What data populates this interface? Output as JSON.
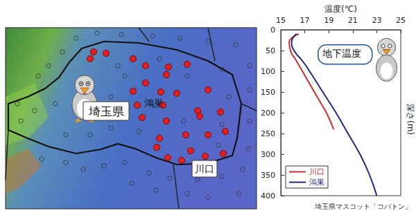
{
  "chart_data": {
    "type": "line",
    "xlabel": "温度(℃)",
    "ylabel": "深さ(m)",
    "xlim": [
      15,
      25
    ],
    "xticks": [
      15,
      17,
      19,
      21,
      23,
      25
    ],
    "ylim": [
      0,
      400
    ],
    "yticks": [
      0,
      50,
      100,
      150,
      200,
      250,
      300,
      350,
      400
    ],
    "grid": false,
    "legend": "lower left",
    "annotation": "地下温度",
    "series": [
      {
        "name": "川口",
        "color": "#d42a2a",
        "x": [
          16.5,
          15.9,
          15.7,
          15.8,
          16.3,
          16.8,
          17.3,
          17.8,
          18.3,
          18.8,
          19.2,
          19.4
        ],
        "y": [
          10,
          20,
          30,
          50,
          75,
          100,
          125,
          150,
          175,
          200,
          225,
          240
        ]
      },
      {
        "name": "鴻巣",
        "color": "#1f2a80",
        "x": [
          16.3,
          16.0,
          15.9,
          16.1,
          16.8,
          17.4,
          18.5,
          19.6,
          20.6,
          21.6,
          22.4,
          23.0
        ],
        "y": [
          10,
          20,
          30,
          50,
          75,
          100,
          150,
          200,
          250,
          300,
          350,
          400
        ]
      }
    ]
  },
  "map": {
    "labels": [
      "埼玉県",
      "鴻巣",
      "川口"
    ]
  },
  "credit": "埼玉県マスコット「コバトン」"
}
